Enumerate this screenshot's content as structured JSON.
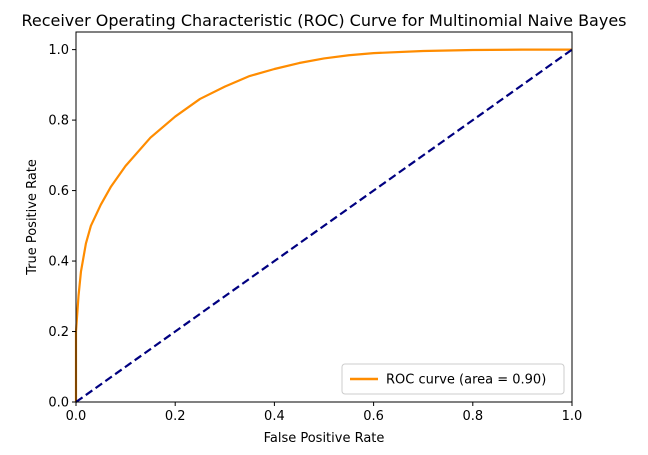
{
  "chart_data": {
    "type": "line",
    "title": "Receiver Operating Characteristic (ROC) Curve for Multinomial Naive Bayes",
    "xlabel": "False Positive Rate",
    "ylabel": "True Positive Rate",
    "xlim": [
      0.0,
      1.0
    ],
    "ylim": [
      0.0,
      1.05
    ],
    "x_ticks": [
      "0.0",
      "0.2",
      "0.4",
      "0.6",
      "0.8",
      "1.0"
    ],
    "y_ticks": [
      "0.0",
      "0.2",
      "0.4",
      "0.6",
      "0.8",
      "1.0"
    ],
    "x_tick_values": [
      0.0,
      0.2,
      0.4,
      0.6,
      0.8,
      1.0
    ],
    "y_tick_values": [
      0.0,
      0.2,
      0.4,
      0.6,
      0.8,
      1.0
    ],
    "grid": false,
    "legend_position": "lower-right",
    "series": [
      {
        "name": "ROC curve (area = 0.90)",
        "color": "#ff8c00",
        "style": "solid",
        "x": [
          0.0,
          0.0,
          0.005,
          0.01,
          0.02,
          0.03,
          0.05,
          0.07,
          0.1,
          0.15,
          0.2,
          0.25,
          0.3,
          0.35,
          0.4,
          0.45,
          0.5,
          0.55,
          0.6,
          0.7,
          0.8,
          0.9,
          1.0
        ],
        "y": [
          0.0,
          0.2,
          0.3,
          0.37,
          0.45,
          0.5,
          0.56,
          0.61,
          0.67,
          0.75,
          0.81,
          0.86,
          0.895,
          0.925,
          0.945,
          0.962,
          0.975,
          0.984,
          0.99,
          0.996,
          0.999,
          1.0,
          1.0
        ]
      },
      {
        "name": "",
        "color": "#000080",
        "style": "dashed",
        "x": [
          0.0,
          1.0
        ],
        "y": [
          0.0,
          1.0
        ]
      }
    ]
  }
}
